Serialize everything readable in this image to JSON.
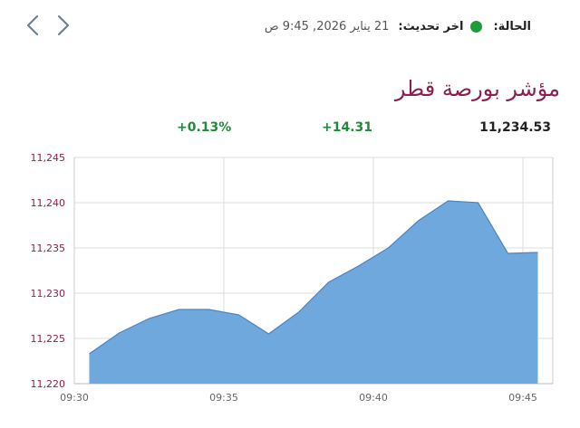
{
  "header": {
    "status_label": "الحالة:",
    "status_color": "#1f9c3a",
    "update_label": "اخر تحديث:",
    "update_value": "21 يناير 2026, 9:45 ص",
    "nav_prev_icon": "chevron-left-icon",
    "nav_next_icon": "chevron-right-icon"
  },
  "title": "مؤشر بورصة قطر",
  "metrics": {
    "price": "11,234.53",
    "change": "+14.31",
    "change_pct": "+0.13%",
    "positive_color": "#1f8a3a"
  },
  "chart_data": {
    "type": "area",
    "title": "",
    "xlabel": "",
    "ylabel": "",
    "ylim": [
      11220,
      11245
    ],
    "xlim": [
      "09:30",
      "09:46"
    ],
    "y_ticks": [
      "11,245",
      "11,240",
      "11,235",
      "11,230",
      "11,225",
      "11,220"
    ],
    "y_tick_values": [
      11245,
      11240,
      11235,
      11230,
      11225,
      11220
    ],
    "x_ticks": [
      "09:30",
      "09:35",
      "09:40",
      "09:45"
    ],
    "grid": true,
    "fill_color": "#6ea8dc",
    "line_color": "#4a86c5",
    "series": [
      {
        "x": [
          "09:30:30",
          "09:31:30",
          "09:32:30",
          "09:33:30",
          "09:34:30",
          "09:35:30",
          "09:36:30",
          "09:37:30",
          "09:38:30",
          "09:39:30",
          "09:40:30",
          "09:41:30",
          "09:42:30",
          "09:43:30",
          "09:44:30",
          "09:45:30"
        ],
        "values": [
          11223.3,
          11225.6,
          11227.2,
          11228.2,
          11228.2,
          11227.6,
          11225.5,
          11227.9,
          11231.2,
          11233.0,
          11235.0,
          11238.0,
          11240.2,
          11240.0,
          11234.4,
          11234.5
        ]
      }
    ]
  }
}
